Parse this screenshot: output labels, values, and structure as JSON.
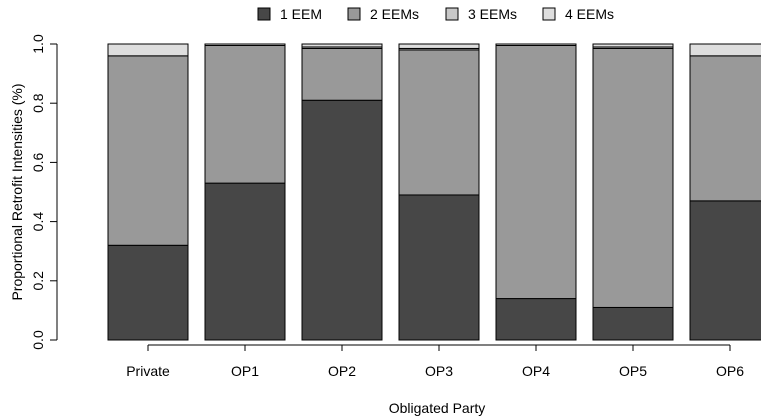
{
  "chart_data": {
    "type": "bar",
    "stacked": true,
    "categories": [
      "Private",
      "OP1",
      "OP2",
      "OP3",
      "OP4",
      "OP5",
      "OP6"
    ],
    "series": [
      {
        "name": "1 EEM",
        "color": "#474747",
        "values": [
          0.32,
          0.53,
          0.81,
          0.49,
          0.14,
          0.11,
          0.47
        ]
      },
      {
        "name": "2 EEMs",
        "color": "#999999",
        "values": [
          0.64,
          0.465,
          0.175,
          0.49,
          0.855,
          0.875,
          0.49
        ]
      },
      {
        "name": "3 EEMs",
        "color": "#c8c8c8",
        "values": [
          0.0,
          0.0,
          0.005,
          0.005,
          0.0,
          0.005,
          0.0
        ]
      },
      {
        "name": "4 EEMs",
        "color": "#dedede",
        "values": [
          0.04,
          0.005,
          0.01,
          0.015,
          0.005,
          0.01,
          0.04
        ]
      }
    ],
    "xlabel": "Obligated Party",
    "ylabel": "Proportional Retrofit Intensities (%)",
    "ylim": [
      0,
      1
    ],
    "yticks": [
      "0.0",
      "0.2",
      "0.4",
      "0.6",
      "0.8",
      "1.0"
    ],
    "legend": "top",
    "grid": false
  }
}
